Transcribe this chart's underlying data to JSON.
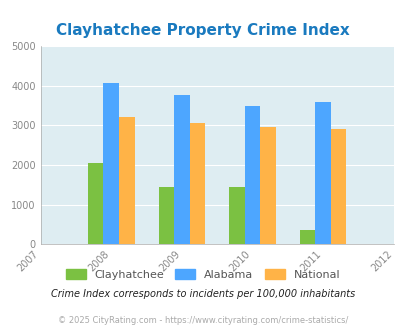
{
  "title": "Clayhatchee Property Crime Index",
  "years": [
    2007,
    2008,
    2009,
    2010,
    2011,
    2012
  ],
  "bar_years": [
    2008,
    2009,
    2010,
    2011
  ],
  "clayhatchee": [
    2050,
    1450,
    1450,
    370
  ],
  "alabama": [
    4080,
    3770,
    3500,
    3600
  ],
  "national": [
    3220,
    3050,
    2950,
    2920
  ],
  "clayhatchee_color": "#7bc142",
  "alabama_color": "#4da6ff",
  "national_color": "#ffb347",
  "bg_color": "#deedf2",
  "title_color": "#1a7abf",
  "ylim": [
    0,
    5000
  ],
  "yticks": [
    0,
    1000,
    2000,
    3000,
    4000,
    5000
  ],
  "footnote1": "Crime Index corresponds to incidents per 100,000 inhabitants",
  "footnote2": "© 2025 CityRating.com - https://www.cityrating.com/crime-statistics/",
  "bar_width": 0.22,
  "tick_color": "#888888",
  "footnote1_color": "#222222",
  "footnote2_color": "#aaaaaa",
  "legend_label_color": "#555555"
}
